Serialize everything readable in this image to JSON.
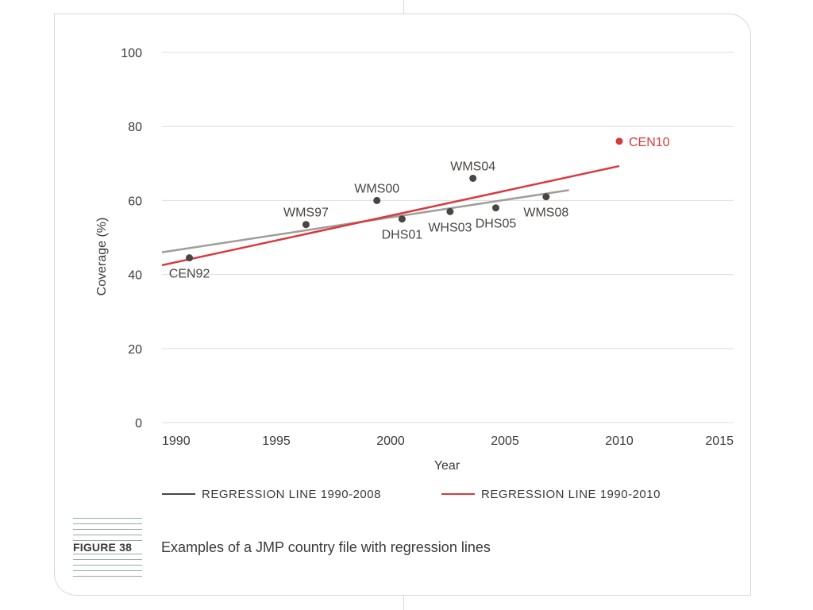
{
  "chart_data": {
    "type": "scatter",
    "xlabel": "Year",
    "ylabel": "Coverage (%)",
    "xlim": [
      1990,
      2015
    ],
    "ylim": [
      0,
      100
    ],
    "x_ticks": [
      1990,
      1995,
      2000,
      2005,
      2010,
      2015
    ],
    "y_ticks": [
      0,
      20,
      40,
      60,
      80,
      100
    ],
    "grid": "horizontal",
    "points": [
      {
        "label": "CEN92",
        "x": 1991.2,
        "y": 44.5,
        "color": "#4a4541",
        "label_pos": "below"
      },
      {
        "label": "WMS97",
        "x": 1996.3,
        "y": 53.5,
        "color": "#4a4541",
        "label_pos": "above"
      },
      {
        "label": "WMS00",
        "x": 1999.4,
        "y": 60.0,
        "color": "#4a4541",
        "label_pos": "above"
      },
      {
        "label": "DHS01",
        "x": 2000.5,
        "y": 55.0,
        "color": "#4a4541",
        "label_pos": "below"
      },
      {
        "label": "WHS03",
        "x": 2002.6,
        "y": 57.0,
        "color": "#4a4541",
        "label_pos": "below"
      },
      {
        "label": "WMS04",
        "x": 2003.6,
        "y": 66.0,
        "color": "#4a4541",
        "label_pos": "above"
      },
      {
        "label": "DHS05",
        "x": 2004.6,
        "y": 58.0,
        "color": "#4a4541",
        "label_pos": "below"
      },
      {
        "label": "WMS08",
        "x": 2006.8,
        "y": 61.0,
        "color": "#4a4541",
        "label_pos": "below"
      },
      {
        "label": "CEN10",
        "x": 2010.0,
        "y": 76.0,
        "color": "#d9393e",
        "label_pos": "right"
      }
    ],
    "series": [
      {
        "name": "REGRESSION LINE 1990-2008",
        "x": [
          1990,
          2007.8
        ],
        "y": [
          46.0,
          62.8
        ],
        "color": "#a09d99",
        "legend_color": "#4a4541"
      },
      {
        "name": "REGRESSION LINE 1990-2010",
        "x": [
          1990,
          2010.0
        ],
        "y": [
          42.5,
          69.3
        ],
        "color": "#d9393e",
        "legend_color": "#d9393e"
      }
    ],
    "legend_placement": "bottom"
  },
  "caption": {
    "figure_label": "FIGURE 38",
    "text": "Examples of a JMP country file with regression lines"
  }
}
